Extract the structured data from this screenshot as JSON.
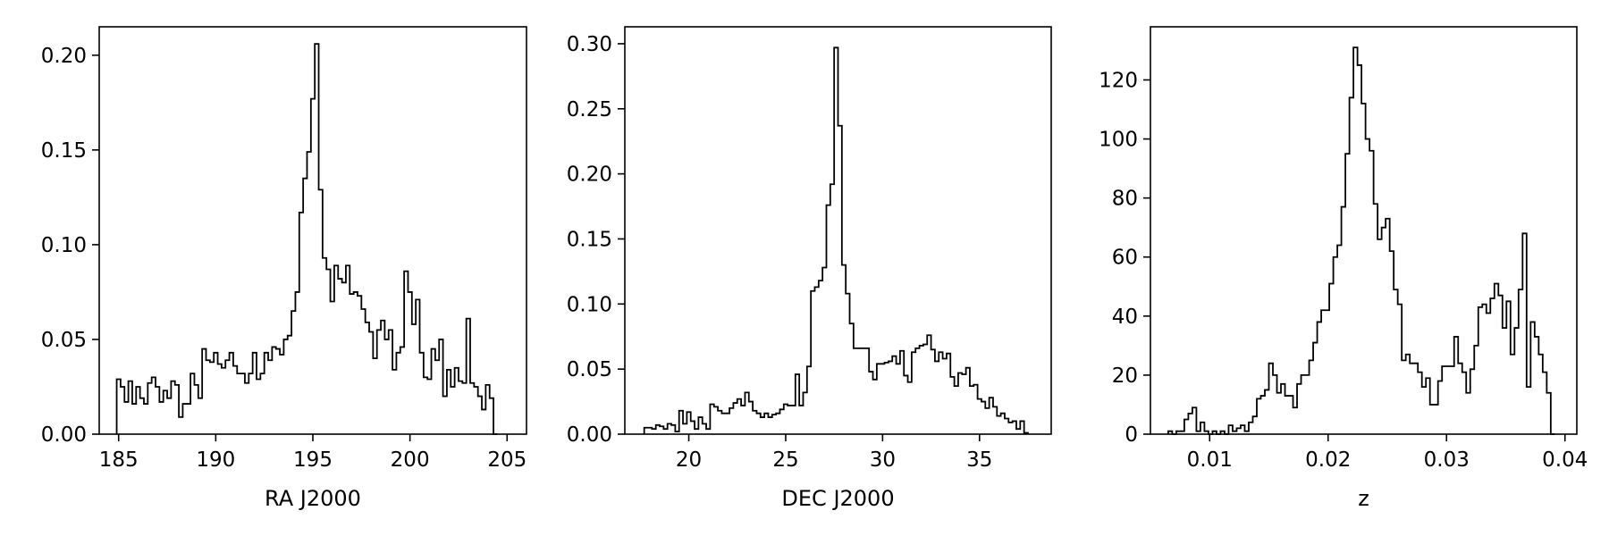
{
  "chart_data": [
    {
      "type": "histogram",
      "title": "",
      "xlabel": "RA J2000",
      "ylabel": "",
      "xlim": [
        184.0,
        206.0
      ],
      "ylim": [
        0.0,
        0.215
      ],
      "xticks": [
        185,
        190,
        195,
        200,
        205
      ],
      "yticks": [
        0.0,
        0.05,
        0.1,
        0.15,
        0.2
      ],
      "xtick_labels": [
        "185",
        "190",
        "195",
        "200",
        "205"
      ],
      "ytick_labels": [
        "0.00",
        "0.05",
        "0.10",
        "0.15",
        "0.20"
      ],
      "grid": false,
      "line_color": "#000000",
      "bins": {
        "start": 184.9,
        "width": 0.2
      },
      "values": [
        0.029,
        0.025,
        0.017,
        0.028,
        0.016,
        0.025,
        0.019,
        0.016,
        0.027,
        0.03,
        0.025,
        0.017,
        0.023,
        0.019,
        0.028,
        0.026,
        0.009,
        0.016,
        0.016,
        0.032,
        0.026,
        0.019,
        0.045,
        0.039,
        0.038,
        0.043,
        0.037,
        0.035,
        0.039,
        0.043,
        0.036,
        0.032,
        0.032,
        0.027,
        0.032,
        0.043,
        0.029,
        0.032,
        0.043,
        0.039,
        0.046,
        0.045,
        0.042,
        0.05,
        0.052,
        0.065,
        0.075,
        0.117,
        0.135,
        0.149,
        0.177,
        0.206,
        0.129,
        0.093,
        0.087,
        0.07,
        0.089,
        0.082,
        0.08,
        0.089,
        0.074,
        0.075,
        0.073,
        0.066,
        0.059,
        0.054,
        0.04,
        0.055,
        0.06,
        0.05,
        0.055,
        0.034,
        0.043,
        0.046,
        0.086,
        0.075,
        0.058,
        0.071,
        0.043,
        0.03,
        0.029,
        0.045,
        0.039,
        0.05,
        0.02,
        0.034,
        0.025,
        0.035,
        0.028,
        0.027,
        0.061,
        0.027,
        0.025,
        0.02,
        0.013,
        0.026,
        0.019,
        0.0
      ]
    },
    {
      "type": "histogram",
      "title": "",
      "xlabel": "DEC J2000",
      "ylabel": "",
      "xlim": [
        16.7,
        38.7
      ],
      "ylim": [
        0.0,
        0.313
      ],
      "xticks": [
        20,
        25,
        30,
        35
      ],
      "yticks": [
        0.0,
        0.05,
        0.1,
        0.15,
        0.2,
        0.25,
        0.3
      ],
      "xtick_labels": [
        "20",
        "25",
        "30",
        "35"
      ],
      "ytick_labels": [
        "0.00",
        "0.05",
        "0.10",
        "0.15",
        "0.20",
        "0.25",
        "0.30"
      ],
      "grid": false,
      "line_color": "#000000",
      "bins": {
        "start": 17.7,
        "width": 0.2
      },
      "values": [
        0.005,
        0.005,
        0.004,
        0.007,
        0.006,
        0.004,
        0.008,
        0.007,
        0.002,
        0.018,
        0.008,
        0.017,
        0.01,
        0.004,
        0.013,
        0.008,
        0.004,
        0.023,
        0.021,
        0.018,
        0.016,
        0.016,
        0.02,
        0.024,
        0.027,
        0.022,
        0.032,
        0.025,
        0.018,
        0.016,
        0.013,
        0.016,
        0.013,
        0.015,
        0.016,
        0.019,
        0.023,
        0.022,
        0.022,
        0.046,
        0.022,
        0.032,
        0.052,
        0.11,
        0.113,
        0.118,
        0.128,
        0.176,
        0.192,
        0.297,
        0.237,
        0.13,
        0.108,
        0.085,
        0.066,
        0.066,
        0.066,
        0.066,
        0.048,
        0.042,
        0.054,
        0.054,
        0.055,
        0.056,
        0.06,
        0.054,
        0.064,
        0.045,
        0.04,
        0.063,
        0.066,
        0.068,
        0.069,
        0.076,
        0.065,
        0.056,
        0.063,
        0.058,
        0.062,
        0.044,
        0.037,
        0.047,
        0.046,
        0.051,
        0.037,
        0.038,
        0.027,
        0.025,
        0.02,
        0.028,
        0.021,
        0.014,
        0.016,
        0.012,
        0.009,
        0.01,
        0.004,
        0.01,
        0.001
      ]
    },
    {
      "type": "histogram",
      "title": "",
      "xlabel": "z",
      "ylabel": "",
      "xlim": [
        0.005,
        0.041
      ],
      "ylim": [
        0.0,
        138.0
      ],
      "xticks": [
        0.01,
        0.02,
        0.03,
        0.04
      ],
      "yticks": [
        0,
        20,
        40,
        60,
        80,
        100,
        120
      ],
      "xtick_labels": [
        "0.01",
        "0.02",
        "0.03",
        "0.04"
      ],
      "ytick_labels": [
        "0",
        "20",
        "40",
        "60",
        "80",
        "100",
        "120"
      ],
      "grid": false,
      "line_color": "#000000",
      "bins": {
        "start": 0.0065,
        "width": 0.00034
      },
      "values": [
        1,
        0,
        1,
        1,
        5,
        7,
        9,
        1,
        4,
        1,
        0,
        1,
        0,
        1,
        0,
        3,
        1,
        2,
        3,
        1,
        4,
        6,
        12,
        13,
        15,
        24,
        20,
        14,
        17,
        13,
        13,
        9,
        17,
        20,
        20,
        25,
        31,
        38,
        42,
        42,
        51,
        60,
        64,
        77,
        95,
        114,
        131,
        125,
        112,
        100,
        96,
        78,
        66,
        70,
        73,
        62,
        49,
        44,
        25,
        27,
        24,
        24,
        21,
        16,
        19,
        10,
        10,
        18,
        23,
        23,
        23,
        33,
        24,
        21,
        14,
        22,
        30,
        43,
        44,
        41,
        46,
        51,
        47,
        36,
        45,
        27,
        36,
        49,
        68,
        16,
        38,
        33,
        27,
        21,
        14,
        0
      ]
    }
  ]
}
